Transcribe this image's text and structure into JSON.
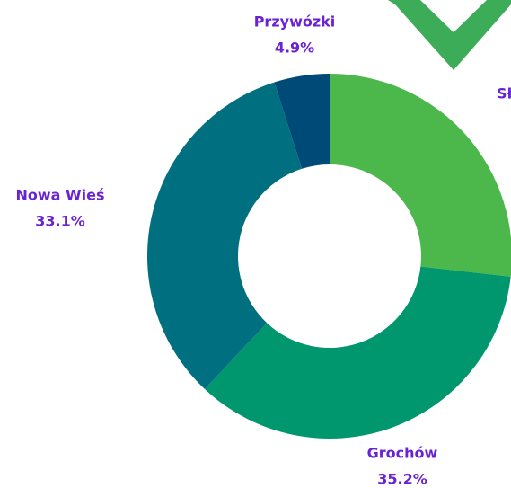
{
  "chart_data": {
    "type": "donut",
    "categories": [
      "Sł",
      "Grochów",
      "Nowa Wieś",
      "Przywózki"
    ],
    "values": [
      26.8,
      35.2,
      33.1,
      4.9
    ],
    "value_labels": [
      null,
      "35.2%",
      "33.1%",
      "4.9%"
    ],
    "colors": [
      "#4cb84c",
      "#00966e",
      "#006f80",
      "#004a78"
    ]
  }
}
